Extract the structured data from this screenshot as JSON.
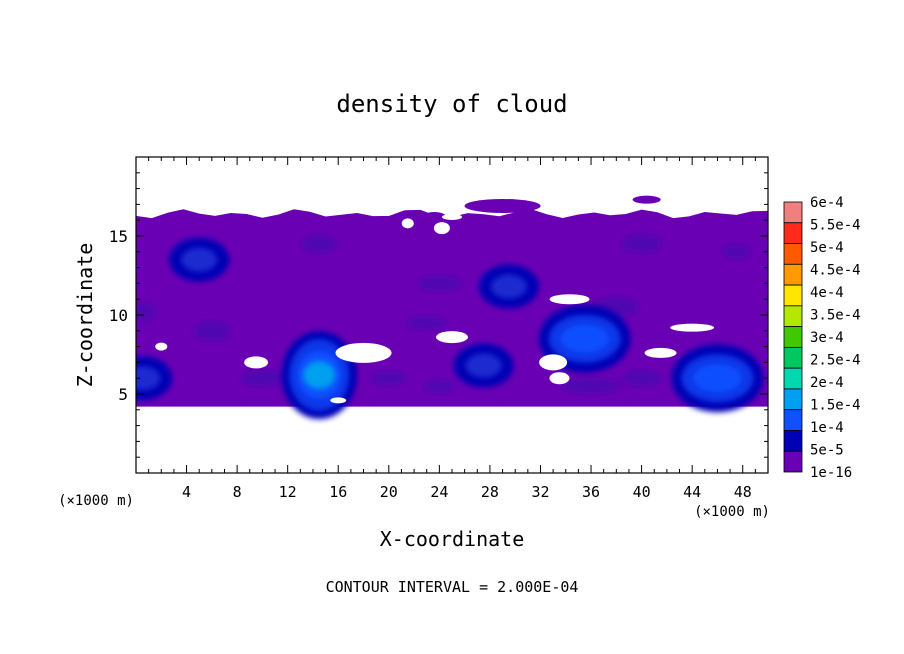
{
  "chart_data": {
    "type": "heatmap",
    "title": "density of cloud",
    "xlabel": "X-coordinate",
    "ylabel": "Z-coordinate",
    "x_unit_left": "(×1000 m)",
    "x_unit_right": "(×1000 m)",
    "footer": "CONTOUR INTERVAL = 2.000E-04",
    "xlim": [
      0,
      50
    ],
    "ylim": [
      0,
      20
    ],
    "x_ticks": [
      "4",
      "8",
      "12",
      "16",
      "20",
      "24",
      "28",
      "32",
      "36",
      "40",
      "44",
      "48"
    ],
    "y_ticks": [
      "5",
      "10",
      "15"
    ],
    "colorbar": {
      "labels": [
        "6e-4",
        "5.5e-4",
        "5e-4",
        "4.5e-4",
        "4e-4",
        "3.5e-4",
        "3e-4",
        "2.5e-4",
        "2e-4",
        "1.5e-4",
        "1e-4",
        "5e-5",
        "1e-16"
      ],
      "colors": [
        "#f08080",
        "#ff2a1a",
        "#ff5a00",
        "#ff9a00",
        "#ffe600",
        "#b4e800",
        "#40c800",
        "#00c860",
        "#00d8b0",
        "#00a0f0",
        "#1050ff",
        "#0000b4",
        "#6a00b4"
      ]
    },
    "cloud_band": {
      "z_bottom": 4.2,
      "z_top": 16.4
    },
    "cloud_cells": [
      {
        "x": 14.5,
        "z": 6.2,
        "max": 0.00015
      },
      {
        "x": 46.0,
        "z": 6.0,
        "max": 0.00012
      },
      {
        "x": 35.5,
        "z": 8.5,
        "max": 0.0001
      },
      {
        "x": 27.5,
        "z": 6.8,
        "max": 5e-05
      },
      {
        "x": 0.5,
        "z": 6.0,
        "max": 5e-05
      },
      {
        "x": 29.5,
        "z": 11.8,
        "max": 5e-05
      },
      {
        "x": 5.0,
        "z": 13.5,
        "max": 5e-05
      }
    ]
  }
}
